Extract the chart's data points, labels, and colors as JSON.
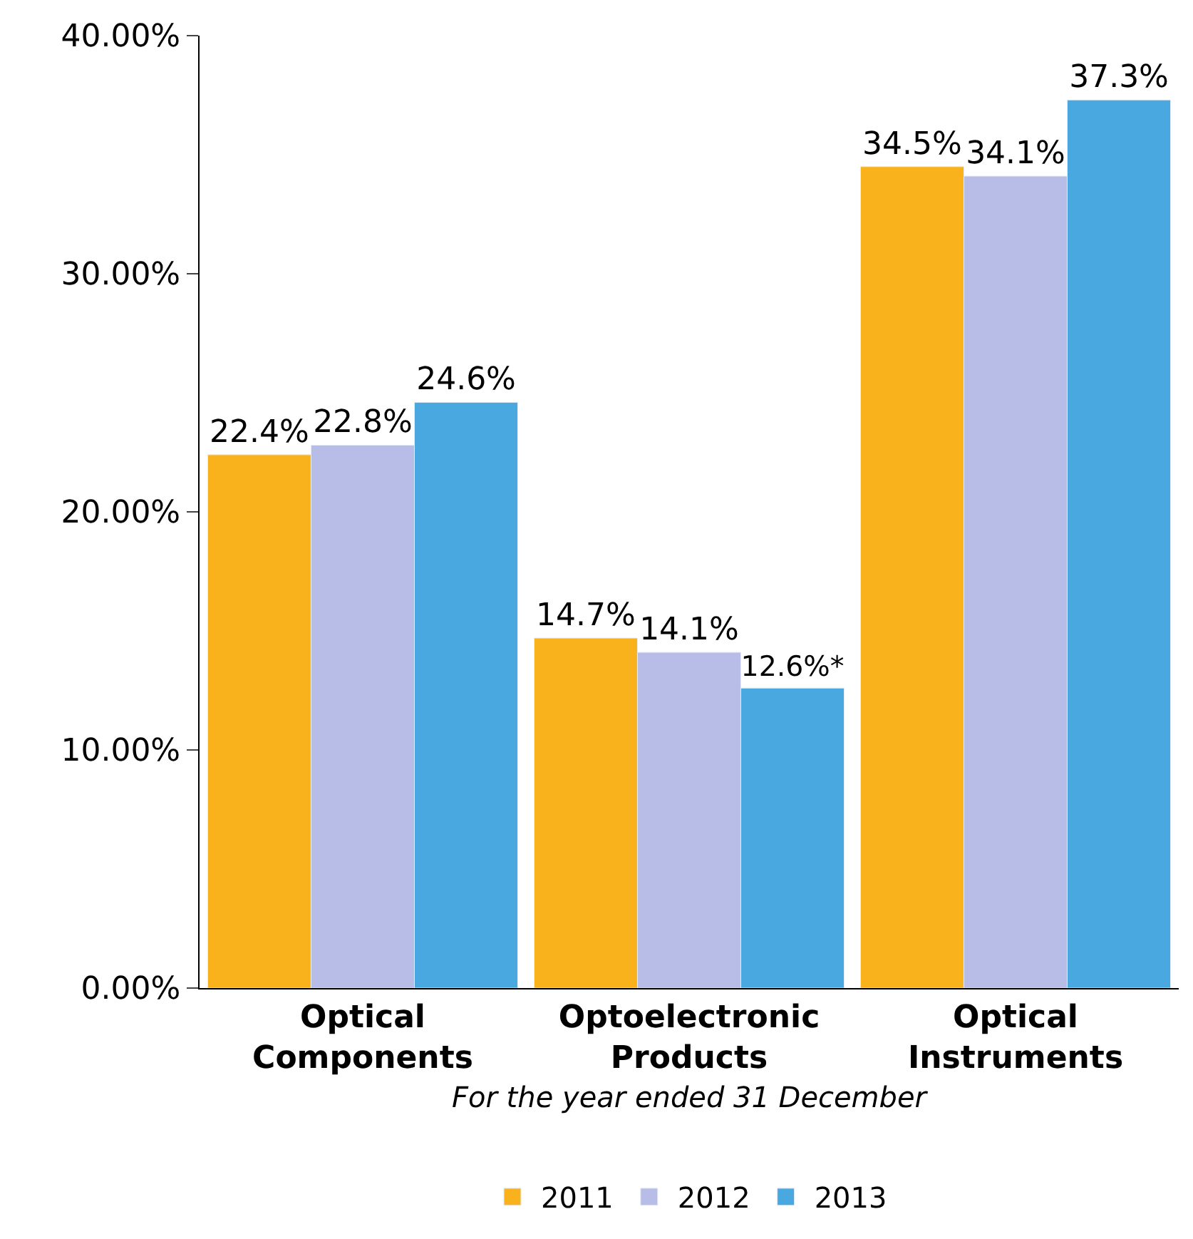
{
  "chart_data": {
    "type": "bar",
    "xlabel": "For the year ended 31 December",
    "categories": [
      "Optical Components",
      "Optoelectronic Products",
      "Optical Instruments"
    ],
    "series": [
      {
        "name": "2011",
        "color": "#f9b21b",
        "values": [
          22.4,
          14.7,
          34.5
        ],
        "value_labels": [
          "22.4%",
          "14.7%",
          "34.5%"
        ]
      },
      {
        "name": "2012",
        "color": "#b8bde8",
        "values": [
          22.8,
          14.1,
          34.1
        ],
        "value_labels": [
          "22.8%",
          "14.1%",
          "34.1%"
        ]
      },
      {
        "name": "2013",
        "color": "#4aa8e0",
        "values": [
          24.6,
          12.6,
          37.3
        ],
        "value_labels": [
          "24.6%",
          "12.6%*",
          "37.3%"
        ]
      }
    ],
    "ylim": [
      0,
      40
    ],
    "yticks": [
      {
        "value": 0,
        "label": "0.00%"
      },
      {
        "value": 10,
        "label": "10.00%"
      },
      {
        "value": 20,
        "label": "20.00%"
      },
      {
        "value": 30,
        "label": "30.00%"
      },
      {
        "value": 40,
        "label": "40.00%"
      }
    ],
    "legend": "bottom"
  }
}
